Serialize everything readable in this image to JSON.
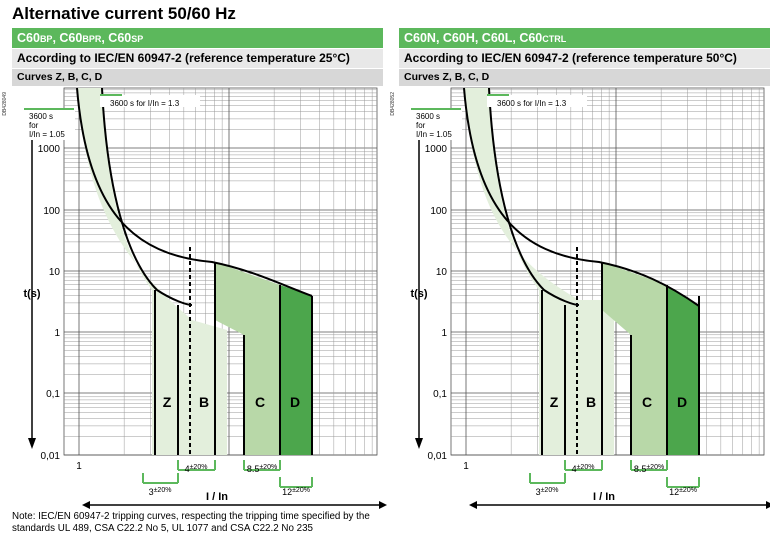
{
  "title": "Alternative current 50/60 Hz",
  "left": {
    "header": "C60",
    "header_parts": [
      "C60",
      "BP",
      ", C60",
      "BPR",
      ", C60",
      "SP"
    ],
    "standard": "According to IEC/EN 60947-2 (reference temperature 25°C)",
    "curves": "Curves Z, B, C, D",
    "code": "DB428049"
  },
  "right": {
    "header_parts": [
      "C60N, C60H, C60L, C60",
      "CTRL"
    ],
    "standard": "According to IEC/EN 60947-2 (reference temperature 50°C)",
    "curves": "Curves Z, B, C, D",
    "code": "DB428052"
  },
  "chart_common": {
    "y_ticks": [
      "1000",
      "100",
      "10",
      "1",
      "0,1",
      "0,01"
    ],
    "x_tick": "1",
    "ylabel": "t(s)",
    "xlabel": "I / In",
    "annot_3600": "3600 s for I/In = 1.3",
    "annot_side": [
      "3600 s",
      "for",
      "I/In = 1.05"
    ],
    "curve_letters": [
      "Z",
      "B",
      "C",
      "D"
    ],
    "tolerances": [
      "4",
      "±20%",
      "8.5",
      "±20%",
      "3",
      "±20%",
      "12",
      "±20%"
    ]
  },
  "note": "Note: IEC/EN 60947-2 tripping curves, respecting the tripping time specified by the standards UL 489, CSA C22.2 No 5, UL 1077 and CSA C22.2 No 235",
  "colors": {
    "green": "#5cb85c",
    "light_green": "#e3efdc",
    "mid_green": "#b8d8a8",
    "dark_green": "#4ca64c"
  }
}
